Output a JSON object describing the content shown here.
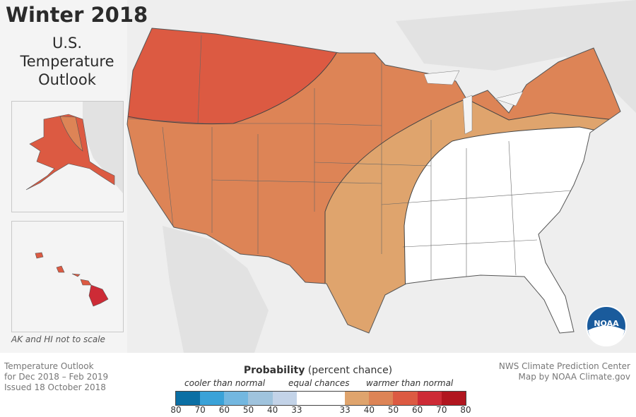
{
  "title": "Winter 2018",
  "subtitle_lines": [
    "U.S.",
    "Temperature",
    "Outlook"
  ],
  "inset_note": "AK and HI not to scale",
  "footer_left": [
    "Temperature Outlook",
    "for Dec 2018 – Feb 2019",
    "Issued 18 October 2018"
  ],
  "footer_right": [
    "NWS Climate Prediction Center",
    "Map by NOAA Climate.gov"
  ],
  "legend": {
    "title_bold": "Probability",
    "title_rest": " (percent chance)",
    "categories": [
      "cooler than normal",
      "equal chances",
      "warmer than normal"
    ],
    "colors": [
      "#0b6fa4",
      "#3aa2d8",
      "#73b7e0",
      "#9fc3dd",
      "#c3d3e8",
      "#ffffff",
      "#ffffff",
      "#dfa46d",
      "#dd8456",
      "#dc5a42",
      "#cd2b36",
      "#b1161f"
    ],
    "ticks": [
      "80",
      "70",
      "60",
      "50",
      "40",
      "33",
      "33",
      "40",
      "50",
      "60",
      "70",
      "80"
    ]
  },
  "logo": "NOAA",
  "regions": {
    "northwest": {
      "category": "warmer than normal",
      "range": "50-60",
      "color": "#dc5a42"
    },
    "central_west": {
      "category": "warmer than normal",
      "range": "40-50",
      "color": "#dd8456"
    },
    "transition": {
      "category": "warmer than normal",
      "range": "33-40",
      "color": "#dfa46d"
    },
    "southeast_ohio_valley": {
      "category": "equal chances",
      "color": "#ffffff"
    },
    "alaska_main": {
      "range": "50-60",
      "color": "#dc5a42"
    },
    "alaska_east": {
      "range": "40-50",
      "color": "#dd8456"
    },
    "hawaii_big_island": {
      "range": "60-70",
      "color": "#cd2b36"
    },
    "hawaii_other": {
      "range": "50-60",
      "color": "#dc5a42"
    }
  }
}
